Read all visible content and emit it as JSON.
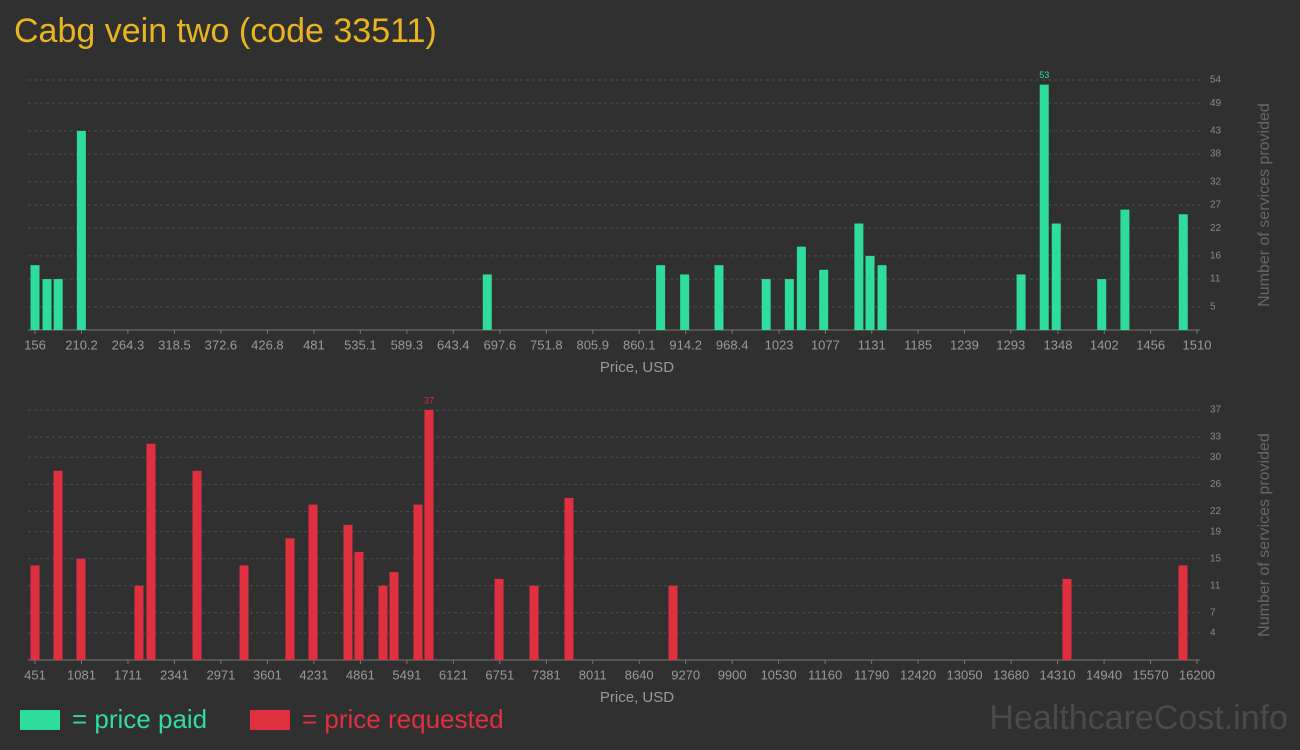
{
  "watermark": "HealthcareCost.info",
  "chart_data": [
    {
      "type": "bar",
      "title": "Cabg vein two (code 33511)",
      "legend_label": "= price paid",
      "color": "#2edc9b",
      "x_label": "Price, USD",
      "y_label": "Number of services provided",
      "x": [
        156,
        170,
        183,
        210,
        683,
        885,
        913,
        953,
        1008,
        1035,
        1049,
        1075,
        1116,
        1129,
        1143,
        1305,
        1332,
        1346,
        1399,
        1426,
        1494
      ],
      "values": [
        14,
        11,
        11,
        43,
        12,
        14,
        12,
        14,
        11,
        11,
        18,
        13,
        23,
        16,
        14,
        12,
        53,
        23,
        11,
        26,
        25
      ],
      "xlim": [
        156,
        1510
      ],
      "ylim": [
        0,
        54
      ],
      "xticks": [
        156,
        210.2,
        264.3,
        318.5,
        372.6,
        426.8,
        481,
        535.1,
        589.3,
        643.4,
        697.6,
        751.8,
        805.9,
        860.1,
        914.2,
        968.4,
        1023,
        1077,
        1131,
        1185,
        1239,
        1293,
        1348,
        1402,
        1456,
        1510
      ],
      "yticks": [
        5,
        11,
        16,
        22,
        27,
        32,
        38,
        43,
        49,
        54
      ],
      "grid": true
    },
    {
      "type": "bar",
      "legend_label": "= price requested",
      "color": "#e0303f",
      "x_label": "Price, USD",
      "y_label": "Number of services provided",
      "x": [
        451,
        763,
        1074,
        1860,
        2023,
        2647,
        3284,
        3907,
        4219,
        4693,
        4842,
        5168,
        5317,
        5642,
        5791,
        6740,
        7214,
        7688,
        9098,
        14438,
        16010
      ],
      "values": [
        14,
        28,
        15,
        11,
        32,
        28,
        14,
        18,
        23,
        20,
        16,
        11,
        13,
        23,
        37,
        12,
        11,
        24,
        11,
        12,
        14
      ],
      "xlim": [
        451,
        16200
      ],
      "ylim": [
        0,
        37
      ],
      "xticks": [
        451,
        1081,
        1711,
        2341,
        2971,
        3601,
        4231,
        4861,
        5491,
        6121,
        6751,
        7381,
        8011,
        8640,
        9270,
        9900,
        10530,
        11160,
        11790,
        12420,
        13050,
        13680,
        14310,
        14940,
        15570,
        16200
      ],
      "yticks": [
        4,
        7,
        11,
        15,
        19,
        22,
        26,
        30,
        33,
        37
      ],
      "grid": true
    }
  ]
}
